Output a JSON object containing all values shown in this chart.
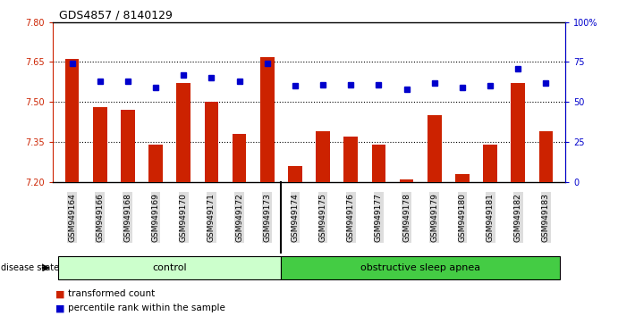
{
  "title": "GDS4857 / 8140129",
  "samples": [
    "GSM949164",
    "GSM949166",
    "GSM949168",
    "GSM949169",
    "GSM949170",
    "GSM949171",
    "GSM949172",
    "GSM949173",
    "GSM949174",
    "GSM949175",
    "GSM949176",
    "GSM949177",
    "GSM949178",
    "GSM949179",
    "GSM949180",
    "GSM949181",
    "GSM949182",
    "GSM949183"
  ],
  "bar_values": [
    7.66,
    7.48,
    7.47,
    7.34,
    7.57,
    7.5,
    7.38,
    7.67,
    7.26,
    7.39,
    7.37,
    7.34,
    7.21,
    7.45,
    7.23,
    7.34,
    7.57,
    7.39
  ],
  "dot_values": [
    74,
    63,
    63,
    59,
    67,
    65,
    63,
    74,
    60,
    61,
    61,
    61,
    58,
    62,
    59,
    60,
    71,
    62
  ],
  "bar_color": "#cc2200",
  "dot_color": "#0000cc",
  "ylim_left": [
    7.2,
    7.8
  ],
  "ylim_right": [
    0,
    100
  ],
  "yticks_left": [
    7.2,
    7.35,
    7.5,
    7.65,
    7.8
  ],
  "yticks_right": [
    0,
    25,
    50,
    75,
    100
  ],
  "ytick_labels_right": [
    "0",
    "25",
    "50",
    "75",
    "100%"
  ],
  "n_control": 8,
  "n_osa": 10,
  "control_label": "control",
  "osa_label": "obstructive sleep apnea",
  "disease_state_label": "disease state",
  "legend_bar_label": "transformed count",
  "legend_dot_label": "percentile rank within the sample",
  "control_color": "#ccffcc",
  "osa_color": "#44cc44",
  "bar_baseline": 7.2,
  "hline_values": [
    7.35,
    7.5,
    7.65
  ],
  "background_color": "#ffffff",
  "tick_bg_color": "#dddddd"
}
